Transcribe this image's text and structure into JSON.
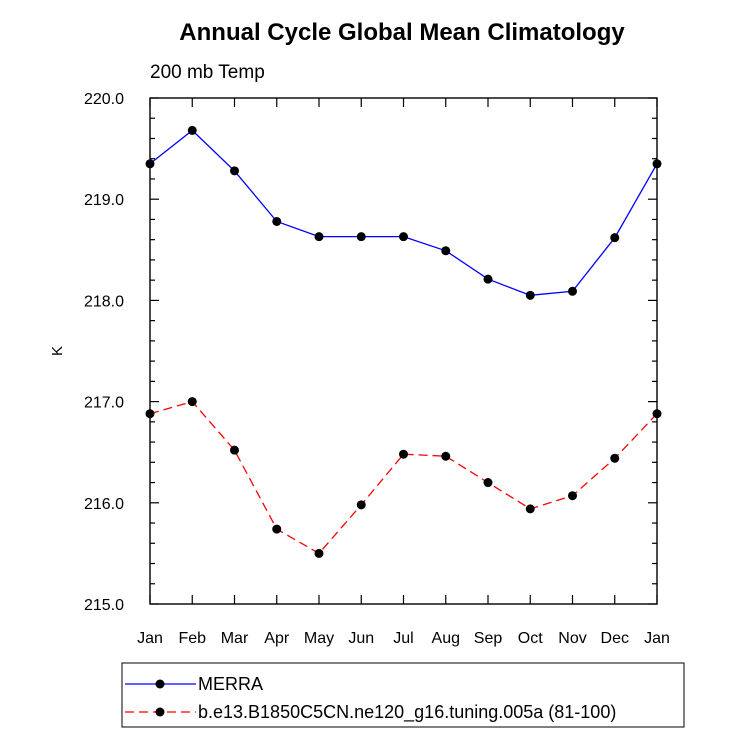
{
  "chart_data": {
    "type": "line",
    "title": "Annual Cycle Global Mean Climatology",
    "subtitle": "200 mb Temp",
    "xlabel": "",
    "ylabel": "K",
    "ylim": [
      215.0,
      220.0
    ],
    "yticks": [
      "215.0",
      "216.0",
      "217.0",
      "218.0",
      "219.0",
      "220.0"
    ],
    "yticks_values": [
      215,
      216,
      217,
      218,
      219,
      220
    ],
    "categories": [
      "Jan",
      "Feb",
      "Mar",
      "Apr",
      "May",
      "Jun",
      "Jul",
      "Aug",
      "Sep",
      "Oct",
      "Nov",
      "Dec",
      "Jan"
    ],
    "grid": false,
    "legend_position": "bottom",
    "series": [
      {
        "name": "MERRA",
        "color": "#0000ff",
        "line_style": "solid",
        "marker": "filled-circle",
        "values": [
          219.35,
          219.68,
          219.28,
          218.78,
          218.63,
          218.63,
          218.63,
          218.49,
          218.21,
          218.05,
          218.09,
          218.62,
          219.35
        ]
      },
      {
        "name": "b.e13.B1850C5CN.ne120_g16.tuning.005a (81-100)",
        "color": "#ff0000",
        "line_style": "dashed",
        "marker": "filled-circle",
        "values": [
          216.88,
          217.0,
          216.52,
          215.74,
          215.5,
          215.98,
          216.48,
          216.46,
          216.2,
          215.94,
          216.07,
          216.44,
          216.88
        ]
      }
    ]
  }
}
